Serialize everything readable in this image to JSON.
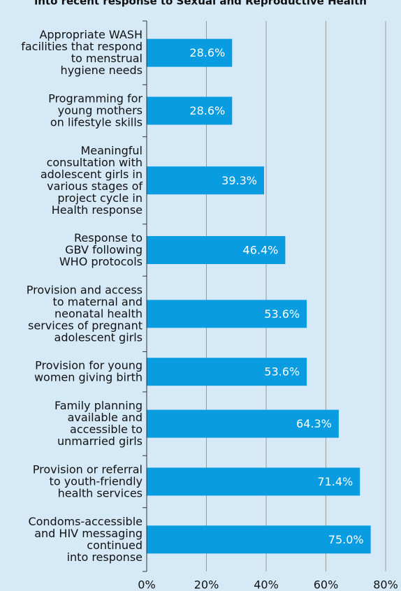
{
  "chart_data": {
    "type": "bar",
    "orientation": "horizontal",
    "title": "into recent response to Sexual and Reproductive Health",
    "categories": [
      "Appropriate WASH\nfacilities that respond\nto menstrual\nhygiene needs",
      "Programming for\nyoung mothers\non lifestyle skills",
      "Meaningful\nconsultation with\nadolescent girls in\nvarious stages of\nproject cycle in\nHealth response",
      "Response to\nGBV following\nWHO protocols",
      "Provision and access\nto maternal and\nneonatal health\nservices of pregnant\nadolescent girls",
      "Provision for young\nwomen giving birth",
      "Family planning\navailable and\naccessible to\nunmarried girls",
      "Provision or referral\nto youth-friendly\nhealth services",
      "Condoms-accessible\nand HIV messaging\ncontinued\ninto response"
    ],
    "values": [
      28.6,
      28.6,
      39.3,
      46.4,
      53.6,
      53.6,
      64.3,
      71.4,
      75.0
    ],
    "value_labels": [
      "28.6%",
      "28.6%",
      "39.3%",
      "46.4%",
      "53.6%",
      "53.6%",
      "64.3%",
      "71.4%",
      "75.0%"
    ],
    "color": "#0a9ce0",
    "xlim": [
      0,
      80
    ],
    "xticks": [
      {
        "value": 0,
        "label": "0%"
      },
      {
        "value": 20,
        "label": "20%"
      },
      {
        "value": 40,
        "label": "40%"
      },
      {
        "value": 60,
        "label": "60%"
      },
      {
        "value": 80,
        "label": "80%"
      }
    ],
    "grid": true
  }
}
